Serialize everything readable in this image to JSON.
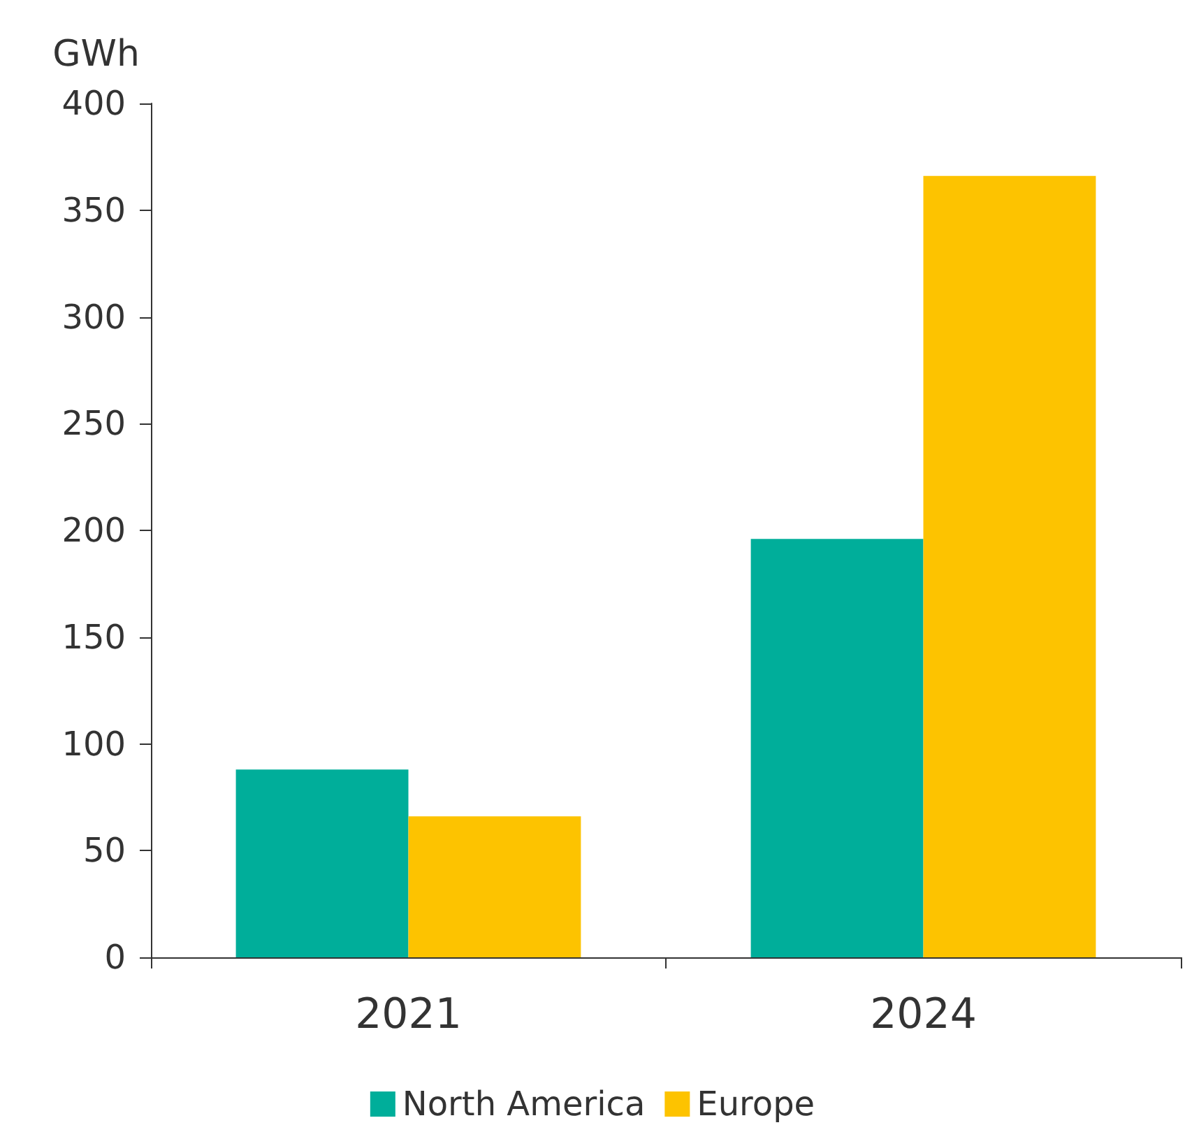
{
  "chart_data": {
    "type": "bar",
    "ylabel": "GWh",
    "categories": [
      "2021",
      "2024"
    ],
    "series": [
      {
        "name": "North America",
        "color": "#00ae9a",
        "values": [
          88,
          196
        ]
      },
      {
        "name": "Europe",
        "color": "#fdc300",
        "values": [
          66,
          366
        ]
      }
    ],
    "ylim": [
      0,
      400
    ],
    "yticks": [
      0,
      50,
      100,
      150,
      200,
      250,
      300,
      350,
      400
    ],
    "grid": false,
    "legend": "bottom"
  }
}
